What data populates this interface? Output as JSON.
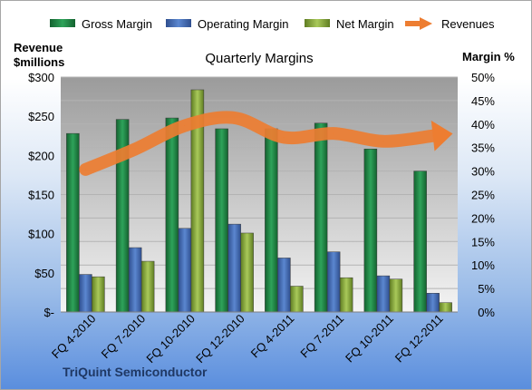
{
  "chart_data": {
    "type": "bar",
    "title": "Quarterly Margins",
    "company": "TriQuint Semiconductor",
    "y_left_label": [
      "Revenue",
      "$millions"
    ],
    "y_right_label": "Margin %",
    "categories": [
      "FQ 4-2010",
      "FQ 7-2010",
      "FQ 10-2010",
      "FQ 12-2010",
      "FQ 4-2011",
      "FQ 7-2011",
      "FQ 10-2011",
      "FQ 12-2011"
    ],
    "y_left_ticks": [
      "$-",
      "$50",
      "$100",
      "$150",
      "$200",
      "$250",
      "$300"
    ],
    "y_right_ticks": [
      "0%",
      "5%",
      "10%",
      "15%",
      "20%",
      "25%",
      "30%",
      "35%",
      "40%",
      "45%",
      "50%"
    ],
    "ylim_left": [
      0,
      300
    ],
    "ylim_right": [
      0,
      50
    ],
    "grid": true,
    "legend_position": "top",
    "series": [
      {
        "name": "Gross Margin",
        "type": "bar",
        "axis": "right",
        "color": "#1e8a46",
        "values": [
          38,
          41,
          41.3,
          39,
          39,
          40.2,
          34.7,
          30
        ]
      },
      {
        "name": "Operating Margin",
        "type": "bar",
        "axis": "right",
        "color": "#4472c4",
        "values": [
          8,
          13.7,
          17.8,
          18.7,
          11.5,
          12.8,
          7.7,
          4
        ]
      },
      {
        "name": "Net Margin",
        "type": "bar",
        "axis": "right",
        "color": "#8db040",
        "values": [
          7.5,
          10.8,
          47.3,
          16.8,
          5.5,
          7.3,
          7,
          2
        ]
      },
      {
        "name": "Revenues",
        "type": "arrow-line",
        "axis": "left",
        "color": "#ed7d31",
        "values": [
          182,
          208,
          238,
          248,
          223,
          228,
          218,
          225
        ]
      }
    ]
  }
}
